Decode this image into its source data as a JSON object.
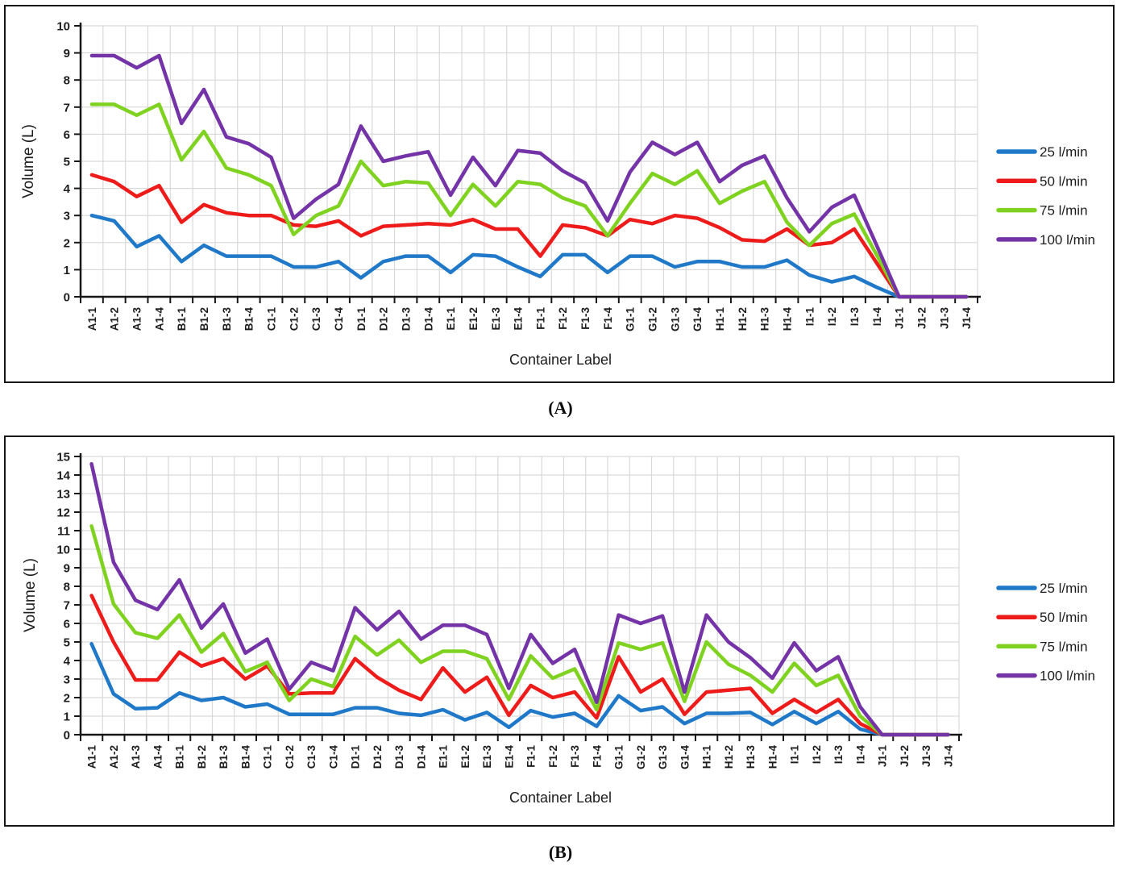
{
  "figure": {
    "caption_a": "(A)",
    "caption_b": "(B)"
  },
  "chart_data": [
    {
      "type": "line",
      "title": "",
      "xlabel": "Container Label",
      "ylabel": "Volume (L)",
      "ylim": [
        0,
        10
      ],
      "ytick_step": 1,
      "grid": true,
      "legend_position": "right",
      "x_label_rotation": -90,
      "categories": [
        "A1-1",
        "A1-2",
        "A1-3",
        "A1-4",
        "B1-1",
        "B1-2",
        "B1-3",
        "B1-4",
        "C1-1",
        "C1-2",
        "C1-3",
        "C1-4",
        "D1-1",
        "D1-2",
        "D1-3",
        "D1-4",
        "E1-1",
        "E1-2",
        "E1-3",
        "E1-4",
        "F1-1",
        "F1-2",
        "F1-3",
        "F1-4",
        "G1-1",
        "G1-2",
        "G1-3",
        "G1-4",
        "H1-1",
        "H1-2",
        "H1-3",
        "H1-4",
        "I1-1",
        "I1-2",
        "I1-3",
        "I1-4",
        "J1-1",
        "J1-2",
        "J1-3",
        "J1-4"
      ],
      "series": [
        {
          "name": "25 l/min",
          "color": "#1F78C8",
          "values": [
            3.0,
            2.8,
            1.85,
            2.25,
            1.3,
            1.9,
            1.5,
            1.5,
            1.5,
            1.1,
            1.1,
            1.3,
            0.7,
            1.3,
            1.5,
            1.5,
            0.9,
            1.55,
            1.5,
            1.1,
            0.75,
            1.55,
            1.55,
            0.9,
            1.5,
            1.5,
            1.1,
            1.3,
            1.3,
            1.1,
            1.1,
            1.35,
            0.8,
            0.55,
            0.75,
            0.35,
            0,
            0,
            0,
            0
          ]
        },
        {
          "name": "50 l/min",
          "color": "#EE1B1B",
          "values": [
            4.5,
            4.25,
            3.7,
            4.1,
            2.75,
            3.4,
            3.1,
            3.0,
            3.0,
            2.65,
            2.6,
            2.8,
            2.25,
            2.6,
            2.65,
            2.7,
            2.65,
            2.85,
            2.5,
            2.5,
            1.5,
            2.65,
            2.55,
            2.25,
            2.85,
            2.7,
            3.0,
            2.9,
            2.55,
            2.1,
            2.05,
            2.5,
            1.9,
            2.0,
            2.5,
            1.25,
            0,
            0,
            0,
            0
          ]
        },
        {
          "name": "75 l/min",
          "color": "#7FD320",
          "values": [
            7.1,
            7.1,
            6.7,
            7.1,
            5.05,
            6.1,
            4.75,
            4.5,
            4.1,
            2.3,
            3.0,
            3.35,
            5.0,
            4.1,
            4.25,
            4.2,
            3.0,
            4.15,
            3.35,
            4.25,
            4.15,
            3.65,
            3.35,
            2.25,
            3.45,
            4.55,
            4.15,
            4.65,
            3.45,
            3.9,
            4.25,
            2.75,
            1.9,
            2.7,
            3.05,
            1.55,
            0,
            0,
            0,
            0
          ]
        },
        {
          "name": "100 l/min",
          "color": "#7433A7",
          "values": [
            8.9,
            8.9,
            8.45,
            8.9,
            6.4,
            7.65,
            5.9,
            5.65,
            5.15,
            2.9,
            3.6,
            4.15,
            6.3,
            5.0,
            5.2,
            5.35,
            3.75,
            5.15,
            4.1,
            5.4,
            5.3,
            4.65,
            4.2,
            2.8,
            4.6,
            5.7,
            5.25,
            5.7,
            4.25,
            4.85,
            5.2,
            3.65,
            2.4,
            3.3,
            3.75,
            1.9,
            0,
            0,
            0,
            0
          ]
        }
      ]
    },
    {
      "type": "line",
      "title": "",
      "xlabel": "Container Label",
      "ylabel": "Volume (L)",
      "ylim": [
        0,
        15
      ],
      "ytick_step": 1,
      "grid": true,
      "legend_position": "right",
      "x_label_rotation": -90,
      "categories": [
        "A1-1",
        "A1-2",
        "A1-3",
        "A1-4",
        "B1-1",
        "B1-2",
        "B1-3",
        "B1-4",
        "C1-1",
        "C1-2",
        "C1-3",
        "C1-4",
        "D1-1",
        "D1-2",
        "D1-3",
        "D1-4",
        "E1-1",
        "E1-2",
        "E1-3",
        "E1-4",
        "F1-1",
        "F1-2",
        "F1-3",
        "F1-4",
        "G1-1",
        "G1-2",
        "G1-3",
        "G1-4",
        "H1-1",
        "H1-2",
        "H1-3",
        "H1-4",
        "I1-1",
        "I1-2",
        "I1-3",
        "I1-4",
        "J1-1",
        "J1-2",
        "J1-3",
        "J1-4"
      ],
      "series": [
        {
          "name": "25 l/min",
          "color": "#1F78C8",
          "values": [
            4.9,
            2.2,
            1.4,
            1.45,
            2.25,
            1.85,
            2.0,
            1.5,
            1.65,
            1.1,
            1.1,
            1.1,
            1.45,
            1.45,
            1.15,
            1.05,
            1.35,
            0.8,
            1.2,
            0.4,
            1.3,
            0.95,
            1.15,
            0.45,
            2.1,
            1.3,
            1.5,
            0.6,
            1.15,
            1.15,
            1.2,
            0.55,
            1.25,
            0.6,
            1.25,
            0.3,
            0,
            0,
            0,
            0
          ]
        },
        {
          "name": "50 l/min",
          "color": "#EE1B1B",
          "values": [
            7.5,
            5.0,
            2.95,
            2.95,
            4.45,
            3.7,
            4.1,
            3.0,
            3.7,
            2.2,
            2.25,
            2.25,
            4.1,
            3.1,
            2.4,
            1.9,
            3.6,
            2.3,
            3.1,
            1.05,
            2.65,
            2.0,
            2.3,
            0.9,
            4.2,
            2.3,
            3.0,
            1.1,
            2.3,
            2.4,
            2.5,
            1.15,
            1.9,
            1.2,
            1.9,
            0.6,
            0,
            0,
            0,
            0
          ]
        },
        {
          "name": "75 l/min",
          "color": "#7FD320",
          "values": [
            11.25,
            7.05,
            5.5,
            5.2,
            6.45,
            4.45,
            5.45,
            3.4,
            3.9,
            1.85,
            3.0,
            2.6,
            5.3,
            4.3,
            5.1,
            3.9,
            4.5,
            4.5,
            4.1,
            1.9,
            4.25,
            3.05,
            3.55,
            1.35,
            4.95,
            4.6,
            4.95,
            1.8,
            5.0,
            3.8,
            3.2,
            2.3,
            3.85,
            2.65,
            3.2,
            1.0,
            0,
            0,
            0,
            0
          ]
        },
        {
          "name": "100 l/min",
          "color": "#7433A7",
          "values": [
            14.6,
            9.3,
            7.25,
            6.75,
            8.35,
            5.75,
            7.05,
            4.4,
            5.15,
            2.45,
            3.9,
            3.45,
            6.85,
            5.65,
            6.65,
            5.15,
            5.9,
            5.9,
            5.4,
            2.5,
            5.4,
            3.85,
            4.6,
            1.75,
            6.45,
            6.0,
            6.4,
            2.3,
            6.45,
            5.0,
            4.15,
            3.05,
            4.95,
            3.45,
            4.2,
            1.5,
            0,
            0,
            0,
            0
          ]
        }
      ]
    }
  ]
}
